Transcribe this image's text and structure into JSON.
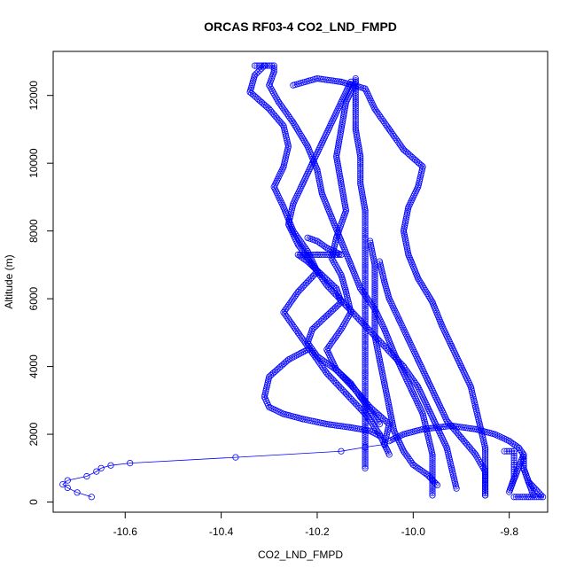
{
  "chart_data": {
    "type": "scatter",
    "title": "ORCAS RF03-4 CO2_LND_FMPD",
    "xlabel": "CO2_LND_FMPD",
    "ylabel": "Altitude (m)",
    "xlim": [
      -10.75,
      -9.72
    ],
    "ylim": [
      -300,
      13300
    ],
    "xticks": [
      -10.6,
      -10.4,
      -10.2,
      -10.0,
      -9.8
    ],
    "xtick_labels": [
      "-10.6",
      "-10.4",
      "-10.2",
      "-10.0",
      "-9.8"
    ],
    "yticks": [
      0,
      2000,
      4000,
      6000,
      8000,
      10000,
      12000
    ],
    "ytick_labels": [
      "0",
      "2000",
      "4000",
      "6000",
      "8000",
      "10000",
      "12000"
    ],
    "grid": false,
    "marker": "open-circle",
    "color": "#0000ff",
    "series": [
      {
        "values": [
          [
            -10.67,
            150
          ],
          [
            -10.7,
            280
          ],
          [
            -10.72,
            420
          ],
          [
            -10.73,
            520
          ],
          [
            -10.72,
            640
          ],
          [
            -10.68,
            760
          ],
          [
            -10.66,
            900
          ],
          [
            -10.65,
            1000
          ],
          [
            -10.63,
            1080
          ],
          [
            -10.59,
            1150
          ],
          [
            -10.37,
            1320
          ],
          [
            -10.15,
            1500
          ],
          [
            -10.1,
            1620
          ],
          [
            -10.06,
            1700
          ]
        ]
      },
      {
        "values": [
          [
            -10.06,
            1700
          ],
          [
            -10.05,
            2300
          ],
          [
            -10.09,
            2800
          ],
          [
            -10.12,
            3300
          ],
          [
            -10.16,
            3900
          ],
          [
            -10.18,
            4500
          ],
          [
            -10.15,
            5100
          ],
          [
            -10.13,
            5600
          ],
          [
            -10.14,
            6200
          ],
          [
            -10.15,
            6700
          ],
          [
            -10.17,
            7200
          ],
          [
            -10.16,
            7800
          ],
          [
            -10.14,
            8600
          ],
          [
            -10.15,
            9400
          ],
          [
            -10.16,
            10200
          ],
          [
            -10.15,
            11000
          ],
          [
            -10.14,
            11800
          ],
          [
            -10.12,
            12400
          ]
        ]
      },
      {
        "values": [
          [
            -10.31,
            12880
          ],
          [
            -10.33,
            12600
          ],
          [
            -10.34,
            12100
          ],
          [
            -10.3,
            11600
          ],
          [
            -10.27,
            11100
          ],
          [
            -10.26,
            10500
          ],
          [
            -10.27,
            9900
          ],
          [
            -10.29,
            9300
          ],
          [
            -10.27,
            8700
          ],
          [
            -10.25,
            8000
          ],
          [
            -10.22,
            7400
          ],
          [
            -10.2,
            6800
          ],
          [
            -10.24,
            6200
          ],
          [
            -10.27,
            5600
          ],
          [
            -10.24,
            5000
          ],
          [
            -10.21,
            4400
          ],
          [
            -10.18,
            3800
          ],
          [
            -10.14,
            3200
          ],
          [
            -10.1,
            2600
          ],
          [
            -10.07,
            2000
          ],
          [
            -10.05,
            1400
          ]
        ]
      },
      {
        "values": [
          [
            -10.33,
            12880
          ],
          [
            -10.29,
            12880
          ],
          [
            -10.29,
            12700
          ],
          [
            -10.3,
            12300
          ],
          [
            -10.28,
            11800
          ],
          [
            -10.25,
            11200
          ],
          [
            -10.22,
            10500
          ],
          [
            -10.2,
            9800
          ],
          [
            -10.19,
            9100
          ],
          [
            -10.17,
            8400
          ],
          [
            -10.15,
            7700
          ],
          [
            -10.13,
            7000
          ],
          [
            -10.11,
            6300
          ],
          [
            -10.08,
            5700
          ],
          [
            -10.06,
            5100
          ],
          [
            -10.04,
            4400
          ],
          [
            -10.02,
            3800
          ],
          [
            -10.0,
            3200
          ],
          [
            -9.98,
            2600
          ],
          [
            -9.97,
            2000
          ],
          [
            -9.96,
            1400
          ],
          [
            -9.96,
            800
          ],
          [
            -9.96,
            200
          ]
        ]
      },
      {
        "values": [
          [
            -10.25,
            12300
          ],
          [
            -10.2,
            12500
          ],
          [
            -10.15,
            12400
          ],
          [
            -10.1,
            12200
          ],
          [
            -10.08,
            11600
          ],
          [
            -10.05,
            11000
          ],
          [
            -10.02,
            10400
          ],
          [
            -9.98,
            9900
          ],
          [
            -9.99,
            9300
          ],
          [
            -10.01,
            8700
          ],
          [
            -10.02,
            8000
          ],
          [
            -10.01,
            7300
          ],
          [
            -9.99,
            6600
          ],
          [
            -9.96,
            5900
          ],
          [
            -9.94,
            5200
          ],
          [
            -9.92,
            4600
          ],
          [
            -9.9,
            4000
          ],
          [
            -9.88,
            3400
          ],
          [
            -9.87,
            2800
          ],
          [
            -9.86,
            2200
          ],
          [
            -9.85,
            1600
          ],
          [
            -9.85,
            1000
          ],
          [
            -9.85,
            200
          ]
        ]
      },
      {
        "values": [
          [
            -10.12,
            12500
          ],
          [
            -10.12,
            11800
          ],
          [
            -10.12,
            11000
          ],
          [
            -10.11,
            10200
          ],
          [
            -10.11,
            9400
          ],
          [
            -10.1,
            8600
          ],
          [
            -10.1,
            7800
          ],
          [
            -10.1,
            7000
          ],
          [
            -10.1,
            6200
          ],
          [
            -10.1,
            5400
          ],
          [
            -10.1,
            4600
          ],
          [
            -10.1,
            3800
          ],
          [
            -10.1,
            3000
          ],
          [
            -10.1,
            2200
          ],
          [
            -10.1,
            1000
          ]
        ]
      },
      {
        "values": [
          [
            -10.13,
            12400
          ],
          [
            -10.15,
            11800
          ],
          [
            -10.17,
            11200
          ],
          [
            -10.19,
            10600
          ],
          [
            -10.21,
            10000
          ],
          [
            -10.23,
            9400
          ],
          [
            -10.25,
            8800
          ],
          [
            -10.26,
            8200
          ],
          [
            -10.24,
            7600
          ],
          [
            -10.21,
            7000
          ],
          [
            -10.18,
            6400
          ],
          [
            -10.14,
            5800
          ],
          [
            -10.1,
            5200
          ],
          [
            -10.06,
            4600
          ],
          [
            -10.02,
            4000
          ],
          [
            -9.99,
            3400
          ],
          [
            -9.97,
            2800
          ],
          [
            -9.95,
            2200
          ],
          [
            -9.93,
            1600
          ],
          [
            -9.92,
            1000
          ],
          [
            -9.91,
            400
          ]
        ]
      },
      {
        "values": [
          [
            -10.07,
            7100
          ],
          [
            -10.06,
            6500
          ],
          [
            -10.05,
            6000
          ],
          [
            -10.03,
            5400
          ],
          [
            -10.01,
            4800
          ],
          [
            -9.99,
            4200
          ],
          [
            -9.97,
            3600
          ],
          [
            -9.95,
            3000
          ],
          [
            -9.93,
            2400
          ],
          [
            -9.9,
            1900
          ],
          [
            -9.87,
            1400
          ],
          [
            -9.85,
            900
          ],
          [
            -9.85,
            200
          ]
        ]
      },
      {
        "values": [
          [
            -10.05,
            1800
          ],
          [
            -10.02,
            2000
          ],
          [
            -9.98,
            2150
          ],
          [
            -9.92,
            2250
          ],
          [
            -9.87,
            2150
          ],
          [
            -9.83,
            2000
          ],
          [
            -9.8,
            1800
          ],
          [
            -9.78,
            1600
          ],
          [
            -9.77,
            1400
          ],
          [
            -9.77,
            1000
          ],
          [
            -9.76,
            600
          ],
          [
            -9.75,
            200
          ]
        ]
      },
      {
        "values": [
          [
            -9.81,
            1500
          ],
          [
            -9.79,
            1500
          ],
          [
            -9.79,
            1100
          ],
          [
            -9.79,
            700
          ],
          [
            -9.8,
            300
          ],
          [
            -9.77,
            1400
          ],
          [
            -9.77,
            1000
          ],
          [
            -9.76,
            600
          ],
          [
            -9.74,
            300
          ],
          [
            -9.73,
            150
          ],
          [
            -9.76,
            150
          ],
          [
            -9.79,
            150
          ]
        ]
      },
      {
        "values": [
          [
            -10.22,
            7800
          ],
          [
            -10.2,
            7700
          ],
          [
            -10.18,
            7500
          ],
          [
            -10.15,
            7300
          ],
          [
            -10.2,
            7300
          ],
          [
            -10.24,
            7300
          ],
          [
            -10.22,
            7100
          ],
          [
            -10.19,
            6700
          ],
          [
            -10.16,
            6300
          ],
          [
            -10.15,
            5900
          ],
          [
            -10.18,
            5500
          ],
          [
            -10.21,
            5100
          ],
          [
            -10.22,
            4700
          ],
          [
            -10.2,
            4300
          ],
          [
            -10.16,
            3900
          ],
          [
            -10.13,
            3500
          ],
          [
            -10.11,
            3100
          ],
          [
            -10.09,
            2700
          ],
          [
            -10.07,
            2300
          ]
        ]
      },
      {
        "values": [
          [
            -10.22,
            4500
          ],
          [
            -10.26,
            4200
          ],
          [
            -10.3,
            3700
          ],
          [
            -10.31,
            3100
          ],
          [
            -10.3,
            2800
          ],
          [
            -10.27,
            2600
          ],
          [
            -10.23,
            2450
          ],
          [
            -10.18,
            2300
          ],
          [
            -10.13,
            2200
          ],
          [
            -10.09,
            2100
          ],
          [
            -10.07,
            1950
          ]
        ]
      },
      {
        "values": [
          [
            -10.09,
            7700
          ],
          [
            -10.08,
            7000
          ],
          [
            -10.08,
            6300
          ],
          [
            -10.08,
            5600
          ],
          [
            -10.08,
            4900
          ],
          [
            -10.07,
            4200
          ],
          [
            -10.06,
            3500
          ],
          [
            -10.05,
            2800
          ],
          [
            -10.04,
            2100
          ],
          [
            -10.02,
            1500
          ],
          [
            -10.0,
            1100
          ],
          [
            -9.97,
            800
          ],
          [
            -9.95,
            500
          ]
        ]
      }
    ]
  }
}
